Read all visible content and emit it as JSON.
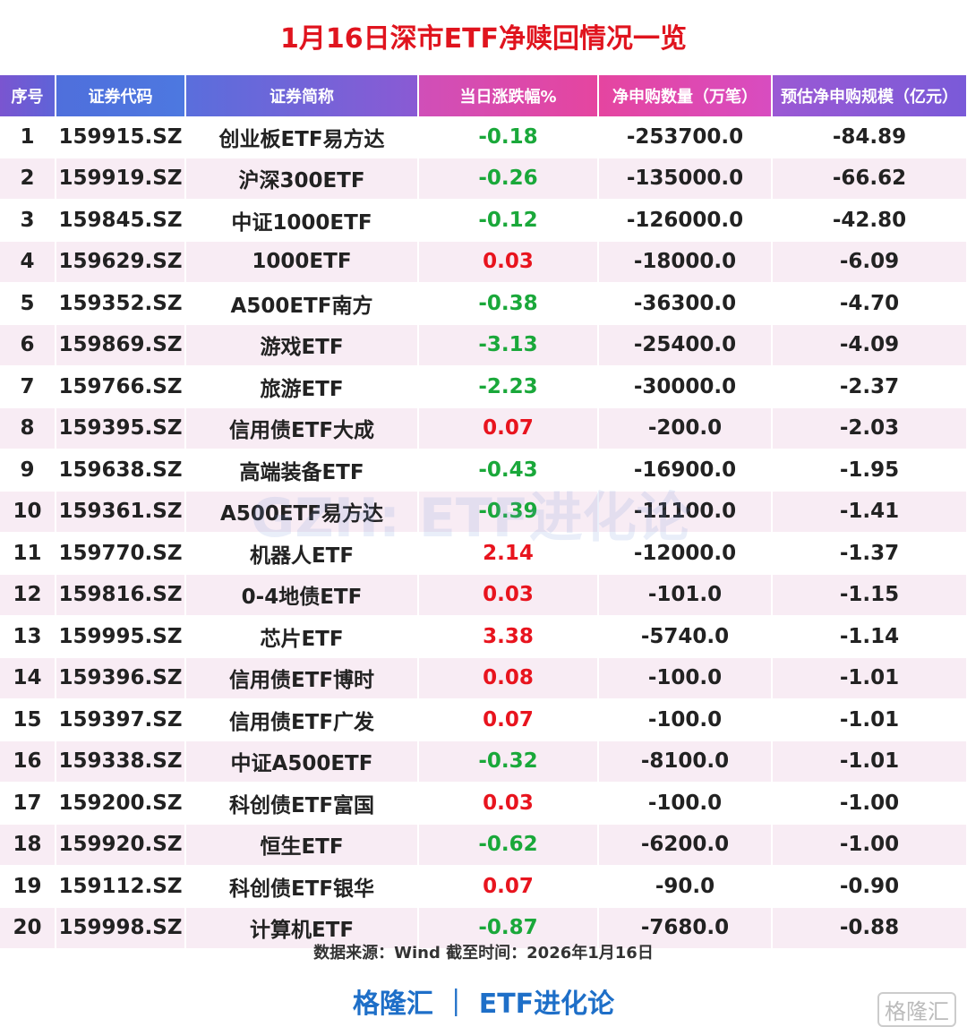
{
  "title": "1月16日深市ETF净赎回情况一览",
  "table": {
    "columns": [
      "序号",
      "证券代码",
      "证券简称",
      "当日涨跌幅%",
      "净申购数量（万笔）",
      "预估净申购规模（亿元）"
    ],
    "rows": [
      [
        "1",
        "159915.SZ",
        "创业板ETF易方达",
        "-0.18",
        "-253700.0",
        "-84.89"
      ],
      [
        "2",
        "159919.SZ",
        "沪深300ETF",
        "-0.26",
        "-135000.0",
        "-66.62"
      ],
      [
        "3",
        "159845.SZ",
        "中证1000ETF",
        "-0.12",
        "-126000.0",
        "-42.80"
      ],
      [
        "4",
        "159629.SZ",
        "1000ETF",
        "0.03",
        "-18000.0",
        "-6.09"
      ],
      [
        "5",
        "159352.SZ",
        "A500ETF南方",
        "-0.38",
        "-36300.0",
        "-4.70"
      ],
      [
        "6",
        "159869.SZ",
        "游戏ETF",
        "-3.13",
        "-25400.0",
        "-4.09"
      ],
      [
        "7",
        "159766.SZ",
        "旅游ETF",
        "-2.23",
        "-30000.0",
        "-2.37"
      ],
      [
        "8",
        "159395.SZ",
        "信用债ETF大成",
        "0.07",
        "-200.0",
        "-2.03"
      ],
      [
        "9",
        "159638.SZ",
        "高端装备ETF",
        "-0.43",
        "-16900.0",
        "-1.95"
      ],
      [
        "10",
        "159361.SZ",
        "A500ETF易方达",
        "-0.39",
        "-11100.0",
        "-1.41"
      ],
      [
        "11",
        "159770.SZ",
        "机器人ETF",
        "2.14",
        "-12000.0",
        "-1.37"
      ],
      [
        "12",
        "159816.SZ",
        "0-4地债ETF",
        "0.03",
        "-101.0",
        "-1.15"
      ],
      [
        "13",
        "159995.SZ",
        "芯片ETF",
        "3.38",
        "-5740.0",
        "-1.14"
      ],
      [
        "14",
        "159396.SZ",
        "信用债ETF博时",
        "0.08",
        "-100.0",
        "-1.01"
      ],
      [
        "15",
        "159397.SZ",
        "信用债ETF广发",
        "0.07",
        "-100.0",
        "-1.01"
      ],
      [
        "16",
        "159338.SZ",
        "中证A500ETF",
        "-0.32",
        "-8100.0",
        "-1.01"
      ],
      [
        "17",
        "159200.SZ",
        "科创债ETF富国",
        "0.03",
        "-100.0",
        "-1.00"
      ],
      [
        "18",
        "159920.SZ",
        "恒生ETF",
        "-0.62",
        "-6200.0",
        "-1.00"
      ],
      [
        "19",
        "159112.SZ",
        "科创债ETF银华",
        "0.07",
        "-90.0",
        "-0.90"
      ],
      [
        "20",
        "159998.SZ",
        "计算机ETF",
        "-0.87",
        "-7680.0",
        "-0.88"
      ]
    ]
  },
  "watermark": "GZH: ETF进化论",
  "footer": {
    "source": "数据来源：Wind 截至时间：2026年1月16日",
    "brand": "格隆汇 ｜ ETF进化论",
    "logo": "格隆汇"
  }
}
